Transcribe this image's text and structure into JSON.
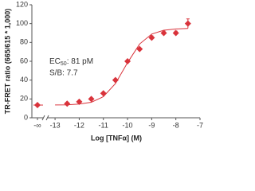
{
  "chart_data": {
    "type": "scatter",
    "x_label": "Log [TNFα] (M)",
    "y_label": "TR-FRET ratio (665/615 * 1,000)",
    "annotations": [
      {
        "text": "EC",
        "sub": "50",
        "rest": ": 81 pM"
      },
      {
        "text": "S/B: 7.7"
      }
    ],
    "color": "#d9333b",
    "zero_dose": {
      "label": "-∞",
      "value": 13.5
    },
    "x": [
      -12.5,
      -12,
      -11.5,
      -11,
      -10.5,
      -10,
      -9.5,
      -9,
      -8.5,
      -8,
      -7.5
    ],
    "values": [
      15,
      17,
      20,
      26,
      40,
      60,
      73,
      85,
      90,
      90,
      100
    ],
    "errors": [
      null,
      null,
      null,
      null,
      null,
      null,
      null,
      2,
      2,
      2,
      5
    ],
    "curve": {
      "x": [
        -13,
        -12.5,
        -12,
        -11.5,
        -11,
        -10.5,
        -10,
        -9.5,
        -9,
        -8.5,
        -8,
        -7.5
      ],
      "values": [
        13.6,
        13.8,
        14.5,
        16.5,
        22.4,
        36.3,
        58.5,
        78.3,
        88.9,
        93.0,
        94.3,
        94.8
      ]
    },
    "xlim": [
      -13.3,
      -7
    ],
    "xticks": [
      -13,
      -12,
      -11,
      -10,
      -9,
      -8,
      -7
    ],
    "ylim": [
      0,
      120
    ],
    "yticks": [
      0,
      20,
      40,
      60,
      80,
      100,
      120
    ]
  }
}
